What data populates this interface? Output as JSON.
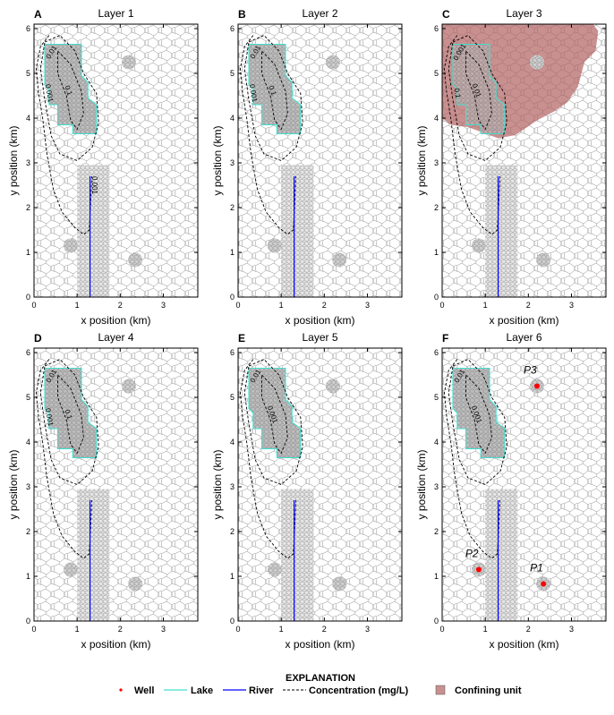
{
  "figure": {
    "explanation_title": "EXPLANATION",
    "legend": [
      {
        "key": "well",
        "label": "Well",
        "color": "#ff0000"
      },
      {
        "key": "lake",
        "label": "Lake",
        "color": "#40e0d0"
      },
      {
        "key": "river",
        "label": "River",
        "color": "#0000ff"
      },
      {
        "key": "concentration",
        "label": "Concentration (mg/L)",
        "color": "#000000"
      },
      {
        "key": "confining",
        "label": "Confining unit",
        "color": "#c99090"
      }
    ]
  },
  "chart_data": [
    {
      "type": "scatter",
      "panel": "A",
      "title": "Layer 1",
      "xlabel": "x position (km)",
      "ylabel": "y position (km)",
      "xlim": [
        0,
        3.8
      ],
      "ylim": [
        0,
        6.1
      ],
      "xticks": [
        "0",
        "1",
        "2",
        "3"
      ],
      "yticks": [
        "0",
        "1",
        "2",
        "3",
        "4",
        "5",
        "6"
      ],
      "contour_labels": [
        "0.01",
        "0.1",
        "0.001",
        "0.001"
      ],
      "river": true,
      "confining_unit": false,
      "wells": []
    },
    {
      "type": "scatter",
      "panel": "B",
      "title": "Layer 2",
      "xlabel": "x position (km)",
      "ylabel": "y position (km)",
      "xlim": [
        0,
        3.8
      ],
      "ylim": [
        0,
        6.1
      ],
      "xticks": [
        "0",
        "1",
        "2",
        "3"
      ],
      "yticks": [
        "0",
        "1",
        "2",
        "3",
        "4",
        "5",
        "6"
      ],
      "contour_labels": [
        "0.01",
        "0.1",
        "0.001"
      ],
      "river": true,
      "confining_unit": false,
      "wells": []
    },
    {
      "type": "scatter",
      "panel": "C",
      "title": "Layer 3",
      "xlabel": "x position (km)",
      "ylabel": "y position (km)",
      "xlim": [
        0,
        3.8
      ],
      "ylim": [
        0,
        6.1
      ],
      "xticks": [
        "0",
        "1",
        "2",
        "3"
      ],
      "yticks": [
        "0",
        "1",
        "2",
        "3",
        "4",
        "5",
        "6"
      ],
      "contour_labels": [
        "0.001",
        "0.01",
        "0.1"
      ],
      "river": true,
      "confining_unit": true,
      "wells": []
    },
    {
      "type": "scatter",
      "panel": "D",
      "title": "Layer 4",
      "xlabel": "x position (km)",
      "ylabel": "y position (km)",
      "xlim": [
        0,
        3.8
      ],
      "ylim": [
        0,
        6.1
      ],
      "xticks": [
        "0",
        "1",
        "2",
        "3"
      ],
      "yticks": [
        "0",
        "1",
        "2",
        "3",
        "4",
        "5",
        "6"
      ],
      "contour_labels": [
        "0.01",
        "0.1",
        "0.001"
      ],
      "river": true,
      "confining_unit": false,
      "wells": []
    },
    {
      "type": "scatter",
      "panel": "E",
      "title": "Layer 5",
      "xlabel": "x position (km)",
      "ylabel": "y position (km)",
      "xlim": [
        0,
        3.8
      ],
      "ylim": [
        0,
        6.1
      ],
      "xticks": [
        "0",
        "1",
        "2",
        "3"
      ],
      "yticks": [
        "0",
        "1",
        "2",
        "3",
        "4",
        "5",
        "6"
      ],
      "contour_labels": [
        "0.01",
        "0.001"
      ],
      "river": true,
      "confining_unit": false,
      "wells": []
    },
    {
      "type": "scatter",
      "panel": "F",
      "title": "Layer 6",
      "xlabel": "x position (km)",
      "ylabel": "y position (km)",
      "xlim": [
        0,
        3.8
      ],
      "ylim": [
        0,
        6.1
      ],
      "xticks": [
        "0",
        "1",
        "2",
        "3"
      ],
      "yticks": [
        "0",
        "1",
        "2",
        "3",
        "4",
        "5",
        "6"
      ],
      "contour_labels": [
        "0.01",
        "0.001"
      ],
      "river": true,
      "confining_unit": false,
      "wells": [
        {
          "name": "P1",
          "x": 2.35,
          "y": 0.83
        },
        {
          "name": "P2",
          "x": 0.85,
          "y": 1.15
        },
        {
          "name": "P3",
          "x": 2.2,
          "y": 5.25
        }
      ]
    }
  ]
}
